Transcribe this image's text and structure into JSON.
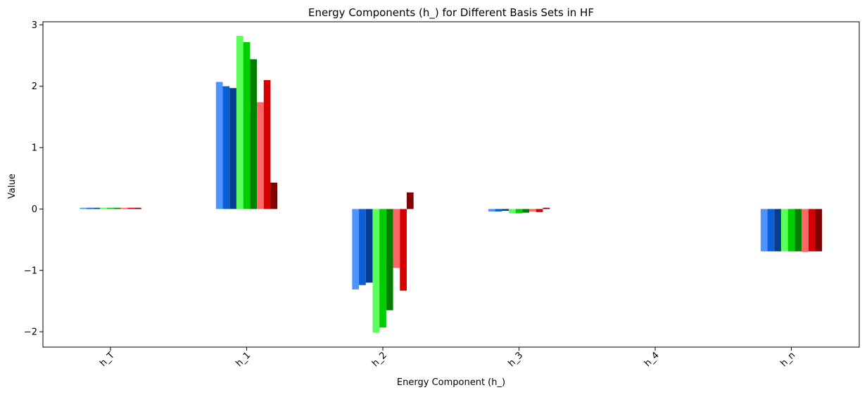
{
  "chart_data": {
    "type": "bar",
    "title": "Energy Components (h_) for Different Basis Sets in HF",
    "xlabel": "Energy Component (h_)",
    "ylabel": "Value",
    "categories": [
      "h_T",
      "h_1",
      "h_2",
      "h_3",
      "h_4",
      "h_n"
    ],
    "ylim": [
      -2.25,
      3.05
    ],
    "yticks": [
      -2,
      -1,
      0,
      1,
      2,
      3
    ],
    "ytick_labels": [
      "−2",
      "−1",
      "0",
      "1",
      "2",
      "3"
    ],
    "grid": false,
    "legend": "none",
    "colors": [
      "#4d94ff",
      "#0a5ed6",
      "#073d8f",
      "#5cff5c",
      "#00cc00",
      "#007f00",
      "#ff6666",
      "#d60000",
      "#800000"
    ],
    "series": [
      {
        "values": [
          0.02,
          2.07,
          -1.31,
          -0.04,
          0.0,
          -0.69
        ]
      },
      {
        "values": [
          0.02,
          2.0,
          -1.24,
          -0.04,
          0.0,
          -0.69
        ]
      },
      {
        "values": [
          0.02,
          1.97,
          -1.2,
          -0.03,
          0.0,
          -0.69
        ]
      },
      {
        "values": [
          0.02,
          2.82,
          -2.01,
          -0.07,
          0.0,
          -0.69
        ]
      },
      {
        "values": [
          0.02,
          2.72,
          -1.93,
          -0.07,
          0.0,
          -0.69
        ]
      },
      {
        "values": [
          0.02,
          2.44,
          -1.65,
          -0.06,
          0.0,
          -0.69
        ]
      },
      {
        "values": [
          0.02,
          1.74,
          -0.96,
          -0.04,
          0.0,
          -0.7
        ]
      },
      {
        "values": [
          0.02,
          2.1,
          -1.33,
          -0.05,
          0.0,
          -0.69
        ]
      },
      {
        "values": [
          0.02,
          0.43,
          0.27,
          0.02,
          0.0,
          -0.69
        ]
      }
    ]
  }
}
